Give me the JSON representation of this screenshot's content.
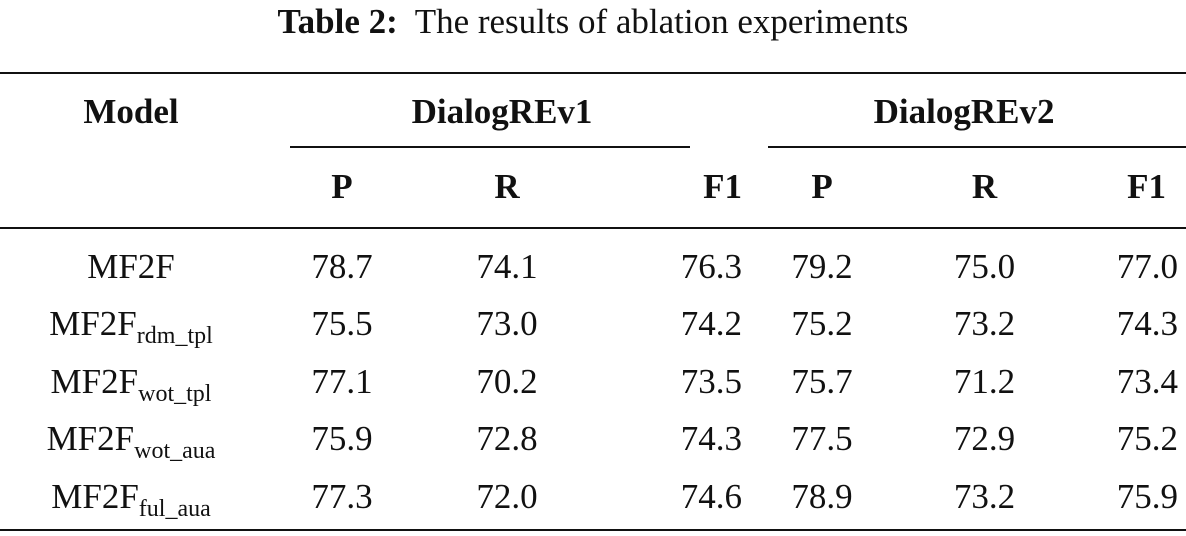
{
  "caption": {
    "label": "Table 2:",
    "text": "The results of ablation experiments"
  },
  "table": {
    "model_header": "Model",
    "groups": [
      "DialogREv1",
      "DialogREv2"
    ],
    "metrics": [
      "P",
      "R",
      "F1",
      "P",
      "R",
      "F1"
    ],
    "rows": [
      {
        "model": "MF2F",
        "sub": "",
        "values": [
          "78.7",
          "74.1",
          "76.3",
          "79.2",
          "75.0",
          "77.0"
        ]
      },
      {
        "model": "MF2F",
        "sub": "rdm_tpl",
        "values": [
          "75.5",
          "73.0",
          "74.2",
          "75.2",
          "73.2",
          "74.3"
        ]
      },
      {
        "model": "MF2F",
        "sub": "wot_tpl",
        "values": [
          "77.1",
          "70.2",
          "73.5",
          "75.7",
          "71.2",
          "73.4"
        ]
      },
      {
        "model": "MF2F",
        "sub": "wot_aua",
        "values": [
          "75.9",
          "72.8",
          "74.3",
          "77.5",
          "72.9",
          "75.2"
        ]
      },
      {
        "model": "MF2F",
        "sub": "ful_aua",
        "values": [
          "77.3",
          "72.0",
          "74.6",
          "78.9",
          "73.2",
          "75.9"
        ]
      }
    ]
  }
}
